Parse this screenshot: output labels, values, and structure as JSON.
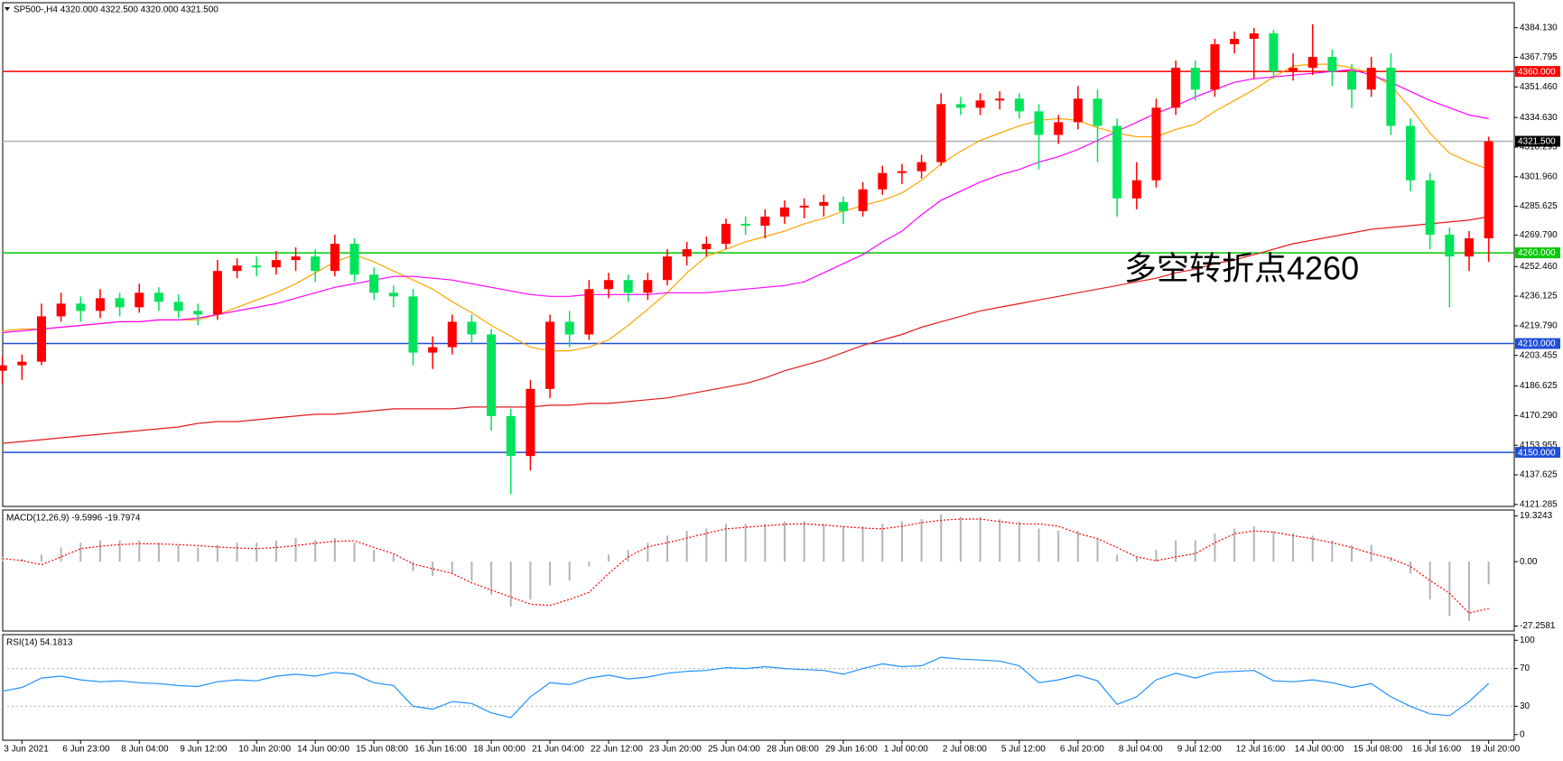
{
  "chart_data": [
    {
      "type": "candlestick",
      "title": "SP500-,H4  4320.000 4322.500 4320.000 4321.500",
      "annotation": "多空转折点4260",
      "categories": [
        null,
        "3 Jun 2021",
        null,
        null,
        "6 Jun 23:00",
        null,
        null,
        "8 Jun 04:00",
        null,
        null,
        "9 Jun 12:00",
        null,
        null,
        "10 Jun 20:00",
        null,
        null,
        "14 Jun 00:00",
        null,
        null,
        "15 Jun 08:00",
        null,
        null,
        "16 Jun 16:00",
        null,
        null,
        "18 Jun 00:00",
        null,
        null,
        "21 Jun 04:00",
        null,
        null,
        "22 Jun 12:00",
        null,
        null,
        "23 Jun 20:00",
        null,
        null,
        "25 Jun 04:00",
        null,
        null,
        "28 Jun 08:00",
        null,
        null,
        "29 Jun 16:00",
        null,
        null,
        "1 Jul 00:00",
        null,
        null,
        "2 Jul 08:00",
        null,
        null,
        "5 Jul 12:00",
        null,
        null,
        "6 Jul 20:00",
        null,
        null,
        "8 Jul 04:00",
        null,
        null,
        "9 Jul 12:00",
        null,
        null,
        "12 Jul 16:00",
        null,
        null,
        "14 Jul 00:00",
        null,
        null,
        "15 Jul 08:00",
        null,
        null,
        "16 Jul 16:00",
        null,
        null,
        "19 Jul 20:00"
      ],
      "open": [
        4195,
        4198,
        4200,
        4225,
        4232,
        4228,
        4235,
        4230,
        4238,
        4233,
        4228,
        4226,
        4250,
        4253,
        4252,
        4256,
        4258,
        4250,
        4265,
        4248,
        4238,
        4236,
        4205,
        4208,
        4222,
        4215,
        4170,
        4148,
        4185,
        4222,
        4215,
        4240,
        4245,
        4238,
        4245,
        4258,
        4262,
        4265,
        4276,
        4275,
        4280,
        4285,
        4286,
        4288,
        4283,
        4295,
        4304,
        4305,
        4310,
        4342,
        4340,
        4344,
        4345,
        4338,
        4325,
        4332,
        4345,
        4330,
        4290,
        4300,
        4340,
        4362,
        4350,
        4375,
        4378,
        4381,
        4360,
        4362,
        4368,
        4360,
        4350,
        4362,
        4330,
        4300,
        4270,
        4258,
        4268
      ],
      "high": [
        4203,
        4204,
        4232,
        4238,
        4236,
        4240,
        4238,
        4243,
        4241,
        4237,
        4232,
        4256,
        4257,
        4258,
        4261,
        4263,
        4262,
        4270,
        4268,
        4252,
        4242,
        4240,
        4214,
        4226,
        4226,
        4218,
        4174,
        4190,
        4226,
        4228,
        4245,
        4249,
        4248,
        4249,
        4262,
        4266,
        4269,
        4279,
        4280,
        4284,
        4289,
        4290,
        4292,
        4291,
        4299,
        4308,
        4309,
        4314,
        4348,
        4346,
        4348,
        4349,
        4348,
        4342,
        4336,
        4352,
        4350,
        4334,
        4310,
        4345,
        4366,
        4366,
        4378,
        4382,
        4384,
        4383,
        4370,
        4386,
        4372,
        4364,
        4368,
        4370,
        4334,
        4304,
        4274,
        4272,
        4324
      ],
      "low": [
        4188,
        4190,
        4198,
        4222,
        4222,
        4224,
        4225,
        4227,
        4228,
        4224,
        4220,
        4223,
        4246,
        4247,
        4248,
        4250,
        4244,
        4247,
        4244,
        4234,
        4230,
        4198,
        4196,
        4204,
        4210,
        4162,
        4127,
        4140,
        4180,
        4208,
        4212,
        4235,
        4233,
        4234,
        4242,
        4253,
        4258,
        4262,
        4270,
        4268,
        4276,
        4279,
        4280,
        4276,
        4280,
        4292,
        4298,
        4301,
        4308,
        4336,
        4336,
        4339,
        4334,
        4306,
        4320,
        4328,
        4310,
        4280,
        4284,
        4296,
        4336,
        4344,
        4346,
        4370,
        4356,
        4356,
        4355,
        4358,
        4352,
        4340,
        4346,
        4325,
        4294,
        4262,
        4230,
        4250,
        4255
      ],
      "close": [
        4198,
        4200,
        4225,
        4232,
        4228,
        4235,
        4230,
        4238,
        4233,
        4228,
        4226,
        4250,
        4253,
        4252,
        4256,
        4258,
        4250,
        4265,
        4248,
        4238,
        4236,
        4205,
        4208,
        4222,
        4215,
        4170,
        4148,
        4185,
        4222,
        4215,
        4240,
        4245,
        4238,
        4245,
        4258,
        4262,
        4265,
        4276,
        4275,
        4280,
        4285,
        4286,
        4288,
        4283,
        4295,
        4304,
        4305,
        4310,
        4342,
        4340,
        4344,
        4345,
        4338,
        4325,
        4332,
        4345,
        4330,
        4290,
        4300,
        4340,
        4362,
        4350,
        4375,
        4378,
        4381,
        4360,
        4362,
        4368,
        4360,
        4350,
        4362,
        4330,
        4300,
        4270,
        4258,
        4268,
        4321.5
      ],
      "up_color": "#ff0000",
      "down_color": "#00e35a",
      "lines": [
        {
          "color": "#ffa500",
          "values": [
            4217,
            4218,
            4218,
            4219,
            4220,
            4221,
            4222,
            4222,
            4223,
            4223,
            4223,
            4226,
            4230,
            4234,
            4238,
            4243,
            4249,
            4255,
            4259,
            4255,
            4250,
            4245,
            4240,
            4233,
            4227,
            4220,
            4214,
            4208,
            4206,
            4206,
            4208,
            4212,
            4220,
            4229,
            4238,
            4249,
            4258,
            4262,
            4266,
            4269,
            4272,
            4276,
            4279,
            4283,
            4286,
            4289,
            4293,
            4300,
            4309,
            4316,
            4322,
            4326,
            4330,
            4333,
            4334,
            4333,
            4329,
            4326,
            4324,
            4324,
            4328,
            4331,
            4338,
            4344,
            4350,
            4357,
            4363,
            4364,
            4364,
            4362,
            4359,
            4352,
            4340,
            4326,
            4315,
            4310,
            4306
          ]
        },
        {
          "color": "#ff00ff",
          "values": [
            4216,
            4217,
            4218,
            4219,
            4220,
            4221,
            4222,
            4222,
            4223,
            4223,
            4224,
            4226,
            4228,
            4230,
            4232,
            4235,
            4238,
            4241,
            4243,
            4245,
            4247,
            4247,
            4246,
            4245,
            4243,
            4241,
            4239,
            4237,
            4236,
            4236,
            4237,
            4237,
            4237,
            4237,
            4238,
            4238,
            4238,
            4239,
            4240,
            4241,
            4242,
            4244,
            4249,
            4254,
            4259,
            4266,
            4272,
            4281,
            4289,
            4294,
            4299,
            4303,
            4306,
            4310,
            4313,
            4317,
            4322,
            4327,
            4332,
            4337,
            4341,
            4346,
            4350,
            4354,
            4356,
            4357,
            4358,
            4359,
            4360,
            4361,
            4358,
            4354,
            4349,
            4344,
            4340,
            4336,
            4334
          ]
        },
        {
          "color": "#e31a1c",
          "values": [
            4155,
            4156,
            4157,
            4158,
            4159,
            4160,
            4161,
            4162,
            4163,
            4164,
            4166,
            4167,
            4167,
            4168,
            4169,
            4170,
            4171,
            4171,
            4172,
            4173,
            4174,
            4174,
            4174,
            4174,
            4175,
            4175,
            4175,
            4175,
            4176,
            4176,
            4177,
            4177,
            4178,
            4179,
            4180,
            4182,
            4184,
            4186,
            4188,
            4191,
            4195,
            4198,
            4201,
            4205,
            4209,
            4212,
            4215,
            4219,
            4222,
            4225,
            4228,
            4230,
            4232,
            4234,
            4236,
            4238,
            4240,
            4242,
            4244,
            4246,
            4249,
            4251,
            4254,
            4256,
            4259,
            4262,
            4265,
            4267,
            4269,
            4271,
            4273,
            4274,
            4275,
            4276,
            4277,
            4278,
            4280
          ]
        }
      ],
      "hlines": [
        {
          "value": 4360,
          "label": "4360.000",
          "color": "#ff0000",
          "box": "#ff0000"
        },
        {
          "value": 4321.5,
          "label": "4321.500",
          "color": "#a8b0b8",
          "box": "#000000"
        },
        {
          "value": 4260,
          "label": "4260.000",
          "color": "#00c800",
          "box": "#00c800"
        },
        {
          "value": 4210,
          "label": "4210.000",
          "color": "#1f4fd8",
          "box": "#1f4fd8"
        },
        {
          "value": 4150,
          "label": "4150.000",
          "color": "#1f4fd8",
          "box": "#1f4fd8"
        }
      ],
      "ylim": [
        4120.2,
        4397.9
      ],
      "yticks": [
        {
          "value": 4384.13,
          "label": "4384.130"
        },
        {
          "value": 4367.795,
          "label": "4367.795"
        },
        {
          "value": 4351.46,
          "label": "4351.460"
        },
        {
          "value": 4334.63,
          "label": "4334.630"
        },
        {
          "value": 4318.295,
          "label": "4318.295"
        },
        {
          "value": 4301.96,
          "label": "4301.960"
        },
        {
          "value": 4285.625,
          "label": "4285.625"
        },
        {
          "value": 4269.79,
          "label": "4269.790"
        },
        {
          "value": 4252.46,
          "label": "4252.460"
        },
        {
          "value": 4236.125,
          "label": "4236.125"
        },
        {
          "value": 4219.79,
          "label": "4219.790"
        },
        {
          "value": 4203.455,
          "label": "4203.455"
        },
        {
          "value": 4186.625,
          "label": "4186.625"
        },
        {
          "value": 4170.29,
          "label": "4170.290"
        },
        {
          "value": 4153.955,
          "label": "4153.955"
        },
        {
          "value": 4137.625,
          "label": "4137.625"
        },
        {
          "value": 4121.285,
          "label": "4121.285"
        }
      ]
    },
    {
      "type": "bar",
      "title": "MACD(12,26,9) -9.5996 -19.7974",
      "color": "#b4b4b4",
      "values": [
        2,
        1,
        3,
        6,
        8,
        9,
        9,
        9,
        8,
        7,
        6,
        7,
        8,
        8,
        9,
        10,
        9,
        10,
        8,
        5,
        3,
        -4,
        -6,
        -5,
        -8,
        -14,
        -19,
        -16,
        -10,
        -8,
        -2,
        3,
        5,
        8,
        11,
        13,
        14,
        16,
        16,
        16,
        17,
        17,
        16,
        15,
        15,
        16,
        17,
        18,
        20,
        19,
        19,
        18,
        17,
        14,
        13,
        13,
        10,
        3,
        2,
        5,
        9,
        9,
        12,
        14,
        15,
        13,
        12,
        11,
        9,
        7,
        7,
        2,
        -5,
        -16,
        -23,
        -25,
        -9.5996
      ],
      "lines": [
        {
          "color": "#ff0000",
          "dashed": true,
          "values": [
            1.3,
            0.5,
            -1.3,
            2,
            5.5,
            6.5,
            7.2,
            7.6,
            7.5,
            7.2,
            6.8,
            6.2,
            5.8,
            5.5,
            6,
            6.8,
            7.8,
            8.6,
            8.8,
            6,
            3.4,
            -1,
            -3,
            -5,
            -9,
            -12,
            -15,
            -18,
            -18.5,
            -16,
            -13,
            -5,
            2,
            6.3,
            8,
            10,
            12,
            13.9,
            14.5,
            15.2,
            15.8,
            16,
            15.5,
            14.8,
            14.2,
            13.9,
            15,
            16.5,
            17.5,
            18,
            18,
            17,
            16,
            16,
            15,
            12,
            9.7,
            6,
            2,
            0.4,
            2,
            3.4,
            8,
            11.8,
            13,
            12.5,
            11,
            9.7,
            8,
            6,
            3.5,
            1.3,
            -2,
            -8,
            -13.4,
            -21.8,
            -19.7974
          ]
        }
      ],
      "ylim": [
        -29.36,
        21.84
      ],
      "yticks": [
        19.3243,
        {
          "value": 0,
          "label": "0.00"
        },
        -27.2581
      ]
    },
    {
      "type": "line",
      "title": "RSI(14) 54.1813",
      "color": "#1e90ff",
      "values": [
        46,
        50,
        60,
        62,
        58,
        56,
        57,
        55,
        54,
        52,
        51,
        56,
        58,
        57,
        62,
        64,
        62,
        66,
        64,
        55,
        52,
        30,
        27,
        35,
        33,
        23,
        18,
        40,
        55,
        53,
        60,
        63,
        59,
        61,
        65,
        67,
        68,
        71,
        70,
        72,
        70,
        69,
        68,
        64,
        70,
        75,
        72,
        73,
        82,
        80,
        79,
        78,
        73,
        55,
        58,
        63,
        57,
        32,
        40,
        58,
        65,
        60,
        66,
        67,
        68,
        57,
        56,
        58,
        55,
        50,
        54,
        40,
        30,
        22,
        20,
        35,
        54.1813
      ],
      "levels": [
        70,
        30
      ],
      "ylim": [
        -6,
        106
      ],
      "yticks": [
        100,
        70,
        30,
        0
      ]
    }
  ]
}
